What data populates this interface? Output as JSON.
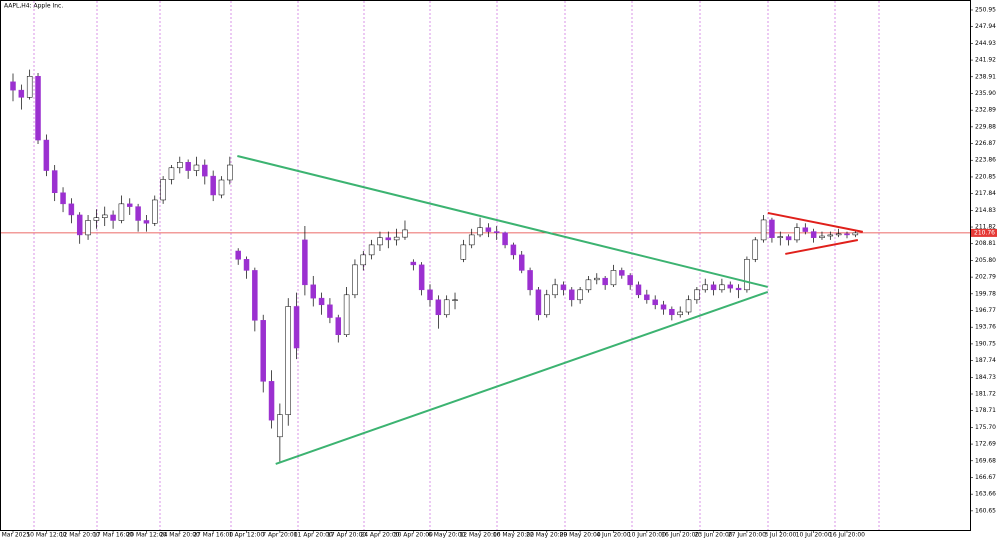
{
  "chart_data": {
    "type": "candlestick",
    "title": "AAPL,H4: Apple Inc.",
    "categories": [
      "4 Mar 2025",
      null,
      null,
      null,
      "10 Mar 12:00",
      null,
      null,
      null,
      "12 Mar 20:00",
      null,
      null,
      null,
      "17 Mar 16:00",
      null,
      null,
      null,
      "20 Mar 12:00",
      null,
      null,
      null,
      "24 Mar 20:00",
      null,
      null,
      null,
      "27 Mar 16:00",
      null,
      null,
      null,
      "1 Apr 12:00",
      null,
      null,
      null,
      "7 Apr 20:00",
      null,
      null,
      null,
      "11 Apr 20:00",
      null,
      null,
      null,
      "17 Apr 20:00",
      null,
      null,
      null,
      "24 Apr 20:00",
      null,
      null,
      null,
      "30 Apr 20:00",
      null,
      null,
      null,
      "6 May 20:00",
      null,
      null,
      null,
      "12 May 20:00",
      null,
      null,
      null,
      "16 May 20:00",
      null,
      null,
      null,
      "22 May 20:00",
      null,
      null,
      null,
      "29 May 20:00",
      null,
      null,
      null,
      "4 Jun 20:00",
      null,
      null,
      null,
      "10 Jun 20:00",
      null,
      null,
      null,
      "16 Jun 20:00",
      null,
      null,
      null,
      "23 Jun 20:00",
      null,
      null,
      null,
      "27 Jun 20:00",
      null,
      null,
      null,
      "3 Jul 20:00",
      null,
      null,
      null,
      "10 Jul 20:00",
      null,
      null,
      null,
      "16 Jul 20:00",
      null
    ],
    "open": [
      238.0,
      236.5,
      235.2,
      239.0,
      227.5,
      222.0,
      218.0,
      216.0,
      214.0,
      210.4,
      213.0,
      213.5,
      214.0,
      213.0,
      216.0,
      215.5,
      213.0,
      212.5,
      216.7,
      220.4,
      222.5,
      223.5,
      222.0,
      223.0,
      221.0,
      217.6,
      220.3,
      207.5,
      206.0,
      204.0,
      195.0,
      184.0,
      174.0,
      178.0,
      197.5,
      209.5,
      201.4,
      199.0,
      197.8,
      195.5,
      192.4,
      199.6,
      205.0,
      206.8,
      208.6,
      209.9,
      209.5,
      210.0,
      205.5,
      205.0,
      200.5,
      198.7,
      196.0,
      198.7,
      206.0,
      208.6,
      210.4,
      211.7,
      211.0,
      210.8,
      208.6,
      206.8,
      204.0,
      200.5,
      196.0,
      199.6,
      201.4,
      200.5,
      198.7,
      200.5,
      202.3,
      202.6,
      201.4,
      204.0,
      203.1,
      201.4,
      199.6,
      198.7,
      197.8,
      197.0,
      196.0,
      196.5,
      198.7,
      200.5,
      201.4,
      200.5,
      201.4,
      200.8,
      200.5,
      206.0,
      209.5,
      213.1,
      209.9,
      210.1,
      209.5,
      211.7,
      211.0,
      209.9,
      210.2,
      210.4,
      210.6,
      210.4
    ],
    "high": [
      239.5,
      237.5,
      240.2,
      239.6,
      228.5,
      223.0,
      219.0,
      217.0,
      214.5,
      214.0,
      215.0,
      215.5,
      214.8,
      217.5,
      217.0,
      216.0,
      214.0,
      217.5,
      221.0,
      223.0,
      224.5,
      224.0,
      224.5,
      224.0,
      222.0,
      221.0,
      224.5,
      208.0,
      206.5,
      204.5,
      196.0,
      186.0,
      180.0,
      199.0,
      200.0,
      212.0,
      203.0,
      200.0,
      199.0,
      196.0,
      201.0,
      206.0,
      207.5,
      209.5,
      211.0,
      211.0,
      211.5,
      213.0,
      206.0,
      205.5,
      201.5,
      199.5,
      199.5,
      200.0,
      209.5,
      211.5,
      213.5,
      212.5,
      212.0,
      211.0,
      209.0,
      207.5,
      204.5,
      201.0,
      200.5,
      202.5,
      202.0,
      201.0,
      201.0,
      203.0,
      203.5,
      203.0,
      205.0,
      204.5,
      203.5,
      202.0,
      200.5,
      199.5,
      198.5,
      197.5,
      197.5,
      199.5,
      201.0,
      202.5,
      202.0,
      202.5,
      202.0,
      201.5,
      206.5,
      210.0,
      214.0,
      213.5,
      211.0,
      210.5,
      212.5,
      212.5,
      211.5,
      211.0,
      211.0,
      211.5,
      211.0,
      211.3
    ],
    "low": [
      234.5,
      233.0,
      234.8,
      226.8,
      221.0,
      216.5,
      214.5,
      212.5,
      208.8,
      209.5,
      211.5,
      212.0,
      211.5,
      212.5,
      214.0,
      211.0,
      211.0,
      212.0,
      216.0,
      219.5,
      221.5,
      220.5,
      221.0,
      219.5,
      216.5,
      217.0,
      219.5,
      205.0,
      202.5,
      193.0,
      182.0,
      175.5,
      169.5,
      176.0,
      188.0,
      199.5,
      197.5,
      196.0,
      194.5,
      191.0,
      192.0,
      199.0,
      204.0,
      206.0,
      207.5,
      208.0,
      208.5,
      209.5,
      204.0,
      199.5,
      197.5,
      193.5,
      195.5,
      197.0,
      205.5,
      208.0,
      210.0,
      210.0,
      209.5,
      208.0,
      206.0,
      203.5,
      199.5,
      195.0,
      195.5,
      199.0,
      199.5,
      197.5,
      198.0,
      200.0,
      201.5,
      200.5,
      201.0,
      202.5,
      200.5,
      199.0,
      198.0,
      197.0,
      196.0,
      195.0,
      195.5,
      196.0,
      198.0,
      200.0,
      199.5,
      200.0,
      200.0,
      199.0,
      200.0,
      205.5,
      209.0,
      209.0,
      208.5,
      208.5,
      209.0,
      210.5,
      209.0,
      209.5,
      209.5,
      210.0,
      209.8,
      210.0
    ],
    "close": [
      236.5,
      235.2,
      239.0,
      227.5,
      222.0,
      218.0,
      216.0,
      214.0,
      210.4,
      213.0,
      213.5,
      214.0,
      213.0,
      216.0,
      215.5,
      213.0,
      212.5,
      216.7,
      220.4,
      222.5,
      223.5,
      222.0,
      223.0,
      221.0,
      217.6,
      220.3,
      223.0,
      206.0,
      204.0,
      195.0,
      184.0,
      177.0,
      178.0,
      197.5,
      190.0,
      201.4,
      199.0,
      197.8,
      195.5,
      192.4,
      199.6,
      205.0,
      206.8,
      208.6,
      209.9,
      209.5,
      210.0,
      211.3,
      205.0,
      200.5,
      198.7,
      196.0,
      198.7,
      198.7,
      208.6,
      210.4,
      211.7,
      211.0,
      210.8,
      208.6,
      206.8,
      204.0,
      200.5,
      196.0,
      199.6,
      201.4,
      200.5,
      198.7,
      200.5,
      202.3,
      202.6,
      201.4,
      204.0,
      203.1,
      201.4,
      199.6,
      198.7,
      197.8,
      197.0,
      196.0,
      196.5,
      198.7,
      200.5,
      201.4,
      200.5,
      201.4,
      200.8,
      200.5,
      206.0,
      209.5,
      213.1,
      209.9,
      210.1,
      209.5,
      211.7,
      211.0,
      209.9,
      210.2,
      210.4,
      210.6,
      210.4,
      210.76
    ],
    "up_color": "#ffffff",
    "down_color": "#9b30d0",
    "last_price": 210.76,
    "last_price_color": "#e53935",
    "trendlines": [
      {
        "color": "#3cb371",
        "from": [
          26.9,
          224.63
        ],
        "to": [
          90.5,
          201.02
        ]
      },
      {
        "color": "#3cb371",
        "from": [
          31.5,
          169.12
        ],
        "to": [
          90.5,
          200.12
        ]
      },
      {
        "color": "#e0201b",
        "from": [
          90.5,
          214.36
        ],
        "to": [
          101.9,
          210.94
        ]
      },
      {
        "color": "#e0201b",
        "from": [
          92.6,
          206.97
        ],
        "to": [
          101.3,
          209.49
        ]
      }
    ],
    "ylim": [
      157.2,
      252.75
    ],
    "yticks": [
      250.95,
      247.94,
      244.93,
      241.92,
      238.91,
      {
        "value": 235.9,
        "label": "235.90"
      },
      232.89,
      229.88,
      226.87,
      223.86,
      220.85,
      217.84,
      214.83,
      211.82,
      208.81,
      {
        "value": 205.8,
        "label": "205.80"
      },
      202.79,
      199.78,
      196.77,
      193.76,
      190.75,
      187.74,
      184.73,
      181.72,
      178.71,
      {
        "value": 175.7,
        "label": "175.70"
      },
      172.69,
      169.68,
      166.67,
      163.66,
      160.65
    ]
  }
}
